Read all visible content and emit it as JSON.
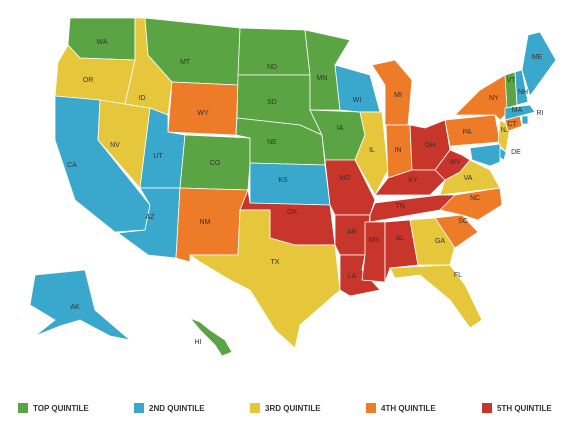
{
  "legend": [
    {
      "label": "TOP QUINTILE",
      "color": "#5ba443"
    },
    {
      "label": "2ND QUINTILE",
      "color": "#3aa8cc"
    },
    {
      "label": "3RD QUINTILE",
      "color": "#e6c73b"
    },
    {
      "label": "4TH QUINTILE",
      "color": "#ee7b27"
    },
    {
      "label": "5TH QUINTILE",
      "color": "#c7352b"
    }
  ],
  "states": [
    {
      "label": "WA",
      "group": 0
    },
    {
      "label": "OR",
      "group": 2
    },
    {
      "label": "CA",
      "group": 1
    },
    {
      "label": "NV",
      "group": 2
    },
    {
      "label": "ID",
      "group": 2
    },
    {
      "label": "MT",
      "group": 0
    },
    {
      "label": "WY",
      "group": 3
    },
    {
      "label": "UT",
      "group": 1
    },
    {
      "label": "AZ",
      "group": 1
    },
    {
      "label": "CO",
      "group": 0
    },
    {
      "label": "NM",
      "group": 3
    },
    {
      "label": "ND",
      "group": 0
    },
    {
      "label": "SD",
      "group": 0
    },
    {
      "label": "NE",
      "group": 0
    },
    {
      "label": "KS",
      "group": 1
    },
    {
      "label": "OK",
      "group": 4
    },
    {
      "label": "TX",
      "group": 2
    },
    {
      "label": "MN",
      "group": 0
    },
    {
      "label": "IA",
      "group": 0
    },
    {
      "label": "MO",
      "group": 4
    },
    {
      "label": "AR",
      "group": 4
    },
    {
      "label": "LA",
      "group": 4
    },
    {
      "label": "WI",
      "group": 1
    },
    {
      "label": "IL",
      "group": 2
    },
    {
      "label": "MI",
      "group": 3
    },
    {
      "label": "IN",
      "group": 3
    },
    {
      "label": "OH",
      "group": 4
    },
    {
      "label": "KY",
      "group": 4
    },
    {
      "label": "TN",
      "group": 4
    },
    {
      "label": "MS",
      "group": 4
    },
    {
      "label": "AL",
      "group": 4
    },
    {
      "label": "GA",
      "group": 2
    },
    {
      "label": "FL",
      "group": 2
    },
    {
      "label": "SC",
      "group": 3
    },
    {
      "label": "NC",
      "group": 3
    },
    {
      "label": "VA",
      "group": 2
    },
    {
      "label": "WV",
      "group": 4
    },
    {
      "label": "PA",
      "group": 3
    },
    {
      "label": "NY",
      "group": 3
    },
    {
      "label": "NJ",
      "group": 2
    },
    {
      "label": "DE",
      "group": 1
    },
    {
      "label": null,
      "group": 1
    },
    {
      "label": "CT",
      "group": 3
    },
    {
      "label": "RI",
      "group": 1
    },
    {
      "label": "MA",
      "group": 1
    },
    {
      "label": "VT",
      "group": 0
    },
    {
      "label": "NH",
      "group": 1
    },
    {
      "label": "ME",
      "group": 1
    },
    {
      "label": "AK",
      "group": 1
    },
    {
      "label": "HI",
      "group": 0
    }
  ]
}
